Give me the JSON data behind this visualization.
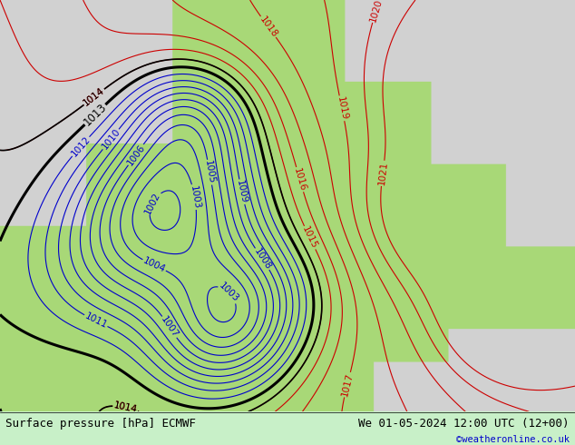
{
  "title_left": "Surface pressure [hPa] ECMWF",
  "title_right": "We 01-05-2024 12:00 UTC (12+00)",
  "credit": "©weatheronline.co.uk",
  "bottom_bar_color": "#c8f0c8",
  "background_gray": [
    0.82,
    0.82,
    0.82
  ],
  "background_green": [
    0.66,
    0.85,
    0.47
  ],
  "contour_blue_color": "#0000cc",
  "contour_red_color": "#cc0000",
  "contour_black_color": "#000000",
  "label_fontsize": 7.5,
  "title_fontsize": 9,
  "credit_fontsize": 7.5,
  "figsize": [
    6.34,
    4.9
  ],
  "dpi": 100,
  "blue_levels": [
    1002,
    1003,
    1004,
    1005,
    1006,
    1007,
    1008,
    1009,
    1010,
    1011,
    1012
  ],
  "red_levels": [
    1014,
    1015,
    1016,
    1017,
    1018,
    1019,
    1020,
    1021
  ],
  "black_bold_levels": [
    1013
  ],
  "black_thin_levels": [
    1014
  ]
}
